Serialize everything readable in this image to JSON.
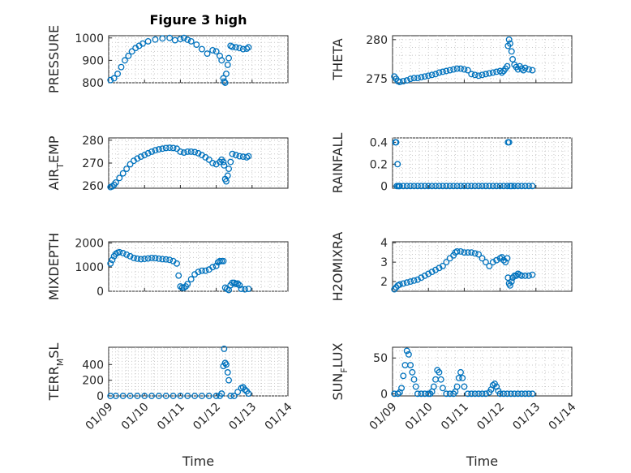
{
  "figure": {
    "title": "Figure 3 high",
    "series_color": "#0072BD",
    "xlabel": "Time"
  },
  "x_ticks": [
    "01/09",
    "01/10",
    "01/11",
    "01/12",
    "01/13",
    "01/14"
  ],
  "chart_data": [
    {
      "type": "scatter",
      "ylabel": "PRESSURE",
      "title": "Figure 3 high",
      "ylim": [
        800,
        1010
      ],
      "yticks": [
        800,
        900,
        1000
      ],
      "ytick_labels": [
        "800",
        "900",
        "1000"
      ],
      "xlim": [
        "2000-01-09",
        "2000-01-14"
      ],
      "grid": true,
      "x": [
        9.05,
        9.15,
        9.25,
        9.35,
        9.45,
        9.55,
        9.65,
        9.75,
        9.85,
        9.95,
        10.1,
        10.3,
        10.5,
        10.7,
        10.85,
        11.0,
        11.1,
        11.2,
        11.3,
        11.45,
        11.6,
        11.75,
        11.9,
        12.0,
        12.1,
        12.15,
        12.2,
        12.22,
        12.25,
        12.28,
        12.32,
        12.35,
        12.4,
        12.45,
        12.55,
        12.65,
        12.75,
        12.85,
        12.9
      ],
      "y": [
        812,
        820,
        840,
        870,
        900,
        920,
        940,
        955,
        965,
        975,
        985,
        993,
        998,
        1000,
        990,
        995,
        1000,
        992,
        985,
        970,
        950,
        930,
        945,
        940,
        920,
        900,
        820,
        805,
        800,
        840,
        880,
        910,
        965,
        960,
        958,
        955,
        950,
        952,
        958
      ]
    },
    {
      "type": "scatter",
      "ylabel": "THETA",
      "ylim": [
        274.5,
        280.5
      ],
      "yticks": [
        275,
        280
      ],
      "ytick_labels": [
        "275",
        "280"
      ],
      "xlim": [
        "2000-01-09",
        "2000-01-14"
      ],
      "grid": true,
      "x": [
        9.05,
        9.1,
        9.15,
        9.2,
        9.3,
        9.4,
        9.5,
        9.6,
        9.7,
        9.8,
        9.9,
        10.0,
        10.1,
        10.2,
        10.3,
        10.4,
        10.5,
        10.6,
        10.7,
        10.8,
        10.9,
        11.0,
        11.1,
        11.2,
        11.3,
        11.4,
        11.5,
        11.6,
        11.7,
        11.8,
        11.9,
        12.0,
        12.05,
        12.1,
        12.15,
        12.2,
        12.22,
        12.25,
        12.28,
        12.32,
        12.35,
        12.4,
        12.45,
        12.5,
        12.55,
        12.6,
        12.65,
        12.7,
        12.8,
        12.9
      ],
      "y": [
        275.3,
        275.0,
        274.7,
        274.6,
        274.7,
        274.8,
        275.0,
        275.1,
        275.1,
        275.2,
        275.3,
        275.4,
        275.5,
        275.6,
        275.8,
        275.9,
        276.0,
        276.1,
        276.2,
        276.3,
        276.3,
        276.2,
        276.1,
        275.6,
        275.5,
        275.4,
        275.5,
        275.6,
        275.7,
        275.8,
        275.9,
        276.0,
        275.8,
        276.0,
        276.3,
        276.6,
        279.2,
        280.0,
        279.5,
        278.5,
        277.5,
        276.8,
        276.5,
        276.2,
        276.6,
        276.3,
        276.1,
        276.4,
        276.2,
        276.1
      ]
    },
    {
      "type": "scatter",
      "ylabel": "AIR_TEMP",
      "ylabel_parts": [
        "AIR",
        "T",
        "EMP"
      ],
      "ylim": [
        259,
        281
      ],
      "yticks": [
        260,
        270,
        280
      ],
      "ytick_labels": [
        "260",
        "270",
        "280"
      ],
      "xlim": [
        "2000-01-09",
        "2000-01-14"
      ],
      "grid": true,
      "x": [
        9.05,
        9.1,
        9.15,
        9.2,
        9.3,
        9.4,
        9.5,
        9.6,
        9.7,
        9.8,
        9.9,
        10.0,
        10.1,
        10.2,
        10.3,
        10.4,
        10.5,
        10.6,
        10.7,
        10.8,
        10.9,
        11.0,
        11.1,
        11.2,
        11.3,
        11.4,
        11.5,
        11.6,
        11.7,
        11.8,
        11.9,
        12.0,
        12.1,
        12.15,
        12.2,
        12.22,
        12.25,
        12.28,
        12.32,
        12.35,
        12.4,
        12.45,
        12.55,
        12.65,
        12.75,
        12.85,
        12.9
      ],
      "y": [
        259.5,
        259.8,
        260.5,
        261.5,
        263.5,
        265.5,
        267.5,
        269.5,
        271.0,
        272.0,
        272.8,
        273.5,
        274.3,
        275.0,
        275.6,
        276.0,
        276.3,
        276.6,
        276.7,
        276.6,
        276.3,
        275.0,
        274.6,
        275.0,
        275.0,
        274.8,
        274.3,
        273.5,
        272.5,
        271.5,
        270.0,
        269.5,
        270.5,
        271.5,
        270.5,
        269.0,
        263.0,
        262.0,
        264.5,
        267.5,
        270.5,
        274.0,
        273.5,
        273.0,
        272.8,
        272.5,
        273.0
      ]
    },
    {
      "type": "scatter",
      "ylabel": "RAINFALL",
      "ylim": [
        -0.02,
        0.44
      ],
      "yticks": [
        0,
        0.2,
        0.4
      ],
      "ytick_labels": [
        "0",
        "0.2",
        "0.4"
      ],
      "xlim": [
        "2000-01-09",
        "2000-01-14"
      ],
      "grid": true,
      "x": [
        9.08,
        9.1,
        9.12,
        9.14,
        9.16,
        9.18,
        9.2,
        9.3,
        9.4,
        9.5,
        9.6,
        9.7,
        9.8,
        9.9,
        10.0,
        10.1,
        10.2,
        10.3,
        10.4,
        10.5,
        10.6,
        10.7,
        10.8,
        10.9,
        11.0,
        11.1,
        11.2,
        11.3,
        11.4,
        11.5,
        11.6,
        11.7,
        11.8,
        11.9,
        12.0,
        12.1,
        12.2,
        12.22,
        12.25,
        12.28,
        12.32,
        12.4,
        12.5,
        12.6,
        12.7,
        12.8,
        12.9
      ],
      "y": [
        0.4,
        0.4,
        0,
        0.2,
        0,
        0,
        0,
        0,
        0,
        0,
        0,
        0,
        0,
        0,
        0,
        0,
        0,
        0,
        0,
        0,
        0,
        0,
        0,
        0,
        0,
        0,
        0,
        0,
        0,
        0,
        0,
        0,
        0,
        0,
        0,
        0,
        0,
        0.4,
        0.4,
        0,
        0,
        0,
        0,
        0,
        0,
        0,
        0
      ]
    },
    {
      "type": "scatter",
      "ylabel": "MIXDEPTH",
      "ylim": [
        0,
        2050
      ],
      "yticks": [
        0,
        1000,
        2000
      ],
      "ytick_labels": [
        "0",
        "1000",
        "2000"
      ],
      "xlim": [
        "2000-01-09",
        "2000-01-14"
      ],
      "grid": true,
      "x": [
        9.05,
        9.1,
        9.15,
        9.2,
        9.25,
        9.3,
        9.4,
        9.5,
        9.6,
        9.7,
        9.8,
        9.9,
        10.0,
        10.1,
        10.2,
        10.3,
        10.4,
        10.5,
        10.6,
        10.7,
        10.8,
        10.9,
        10.95,
        11.0,
        11.05,
        11.1,
        11.15,
        11.2,
        11.3,
        11.4,
        11.5,
        11.6,
        11.7,
        11.8,
        11.9,
        12.0,
        12.05,
        12.1,
        12.15,
        12.2,
        12.25,
        12.3,
        12.35,
        12.4,
        12.45,
        12.5,
        12.55,
        12.6,
        12.65,
        12.7,
        12.8,
        12.9
      ],
      "y": [
        1150,
        1300,
        1450,
        1550,
        1600,
        1620,
        1580,
        1520,
        1450,
        1380,
        1350,
        1330,
        1340,
        1360,
        1380,
        1370,
        1350,
        1330,
        1320,
        1300,
        1250,
        1150,
        650,
        200,
        150,
        150,
        200,
        300,
        500,
        700,
        800,
        850,
        850,
        900,
        1000,
        1050,
        1200,
        1250,
        1250,
        1250,
        150,
        100,
        50,
        250,
        350,
        350,
        300,
        320,
        250,
        100,
        80,
        100
      ]
    },
    {
      "type": "scatter",
      "ylabel": "H2OMIXRA",
      "ylim": [
        1.5,
        4.05
      ],
      "yticks": [
        2,
        3,
        4
      ],
      "ytick_labels": [
        "2",
        "3",
        "4"
      ],
      "xlim": [
        "2000-01-09",
        "2000-01-14"
      ],
      "grid": true,
      "x": [
        9.05,
        9.1,
        9.15,
        9.2,
        9.3,
        9.4,
        9.5,
        9.6,
        9.7,
        9.8,
        9.9,
        10.0,
        10.1,
        10.2,
        10.3,
        10.4,
        10.5,
        10.6,
        10.7,
        10.75,
        10.8,
        10.9,
        11.0,
        11.1,
        11.2,
        11.3,
        11.4,
        11.5,
        11.6,
        11.7,
        11.8,
        11.9,
        12.0,
        12.05,
        12.1,
        12.15,
        12.2,
        12.22,
        12.25,
        12.28,
        12.32,
        12.35,
        12.4,
        12.45,
        12.5,
        12.55,
        12.6,
        12.7,
        12.8,
        12.9
      ],
      "y": [
        1.6,
        1.7,
        1.8,
        1.85,
        1.9,
        1.95,
        2.0,
        2.05,
        2.1,
        2.2,
        2.3,
        2.4,
        2.5,
        2.6,
        2.7,
        2.8,
        3.0,
        3.2,
        3.35,
        3.5,
        3.55,
        3.55,
        3.5,
        3.5,
        3.5,
        3.45,
        3.4,
        3.2,
        3.0,
        2.8,
        3.0,
        3.1,
        3.2,
        3.25,
        3.1,
        3.0,
        3.2,
        2.2,
        1.9,
        1.8,
        2.0,
        2.2,
        2.3,
        2.3,
        2.4,
        2.35,
        2.3,
        2.3,
        2.3,
        2.35
      ]
    },
    {
      "type": "scatter",
      "ylabel": "TERR_MSL",
      "ylabel_parts": [
        "TERR",
        "M",
        "SL"
      ],
      "ylim": [
        0,
        620
      ],
      "yticks": [
        0,
        200,
        400
      ],
      "ytick_labels": [
        "0",
        "200",
        "400"
      ],
      "xlim": [
        "2000-01-09",
        "2000-01-14"
      ],
      "grid": true,
      "x": [
        9.05,
        9.2,
        9.4,
        9.6,
        9.8,
        10.0,
        10.2,
        10.4,
        10.6,
        10.8,
        11.0,
        11.2,
        11.4,
        11.6,
        11.8,
        12.0,
        12.1,
        12.15,
        12.2,
        12.22,
        12.25,
        12.28,
        12.32,
        12.35,
        12.4,
        12.5,
        12.6,
        12.7,
        12.75,
        12.8,
        12.85,
        12.9
      ],
      "y": [
        0,
        0,
        0,
        0,
        0,
        0,
        0,
        0,
        0,
        0,
        0,
        0,
        0,
        0,
        0,
        0,
        0,
        30,
        380,
        600,
        420,
        400,
        300,
        200,
        0,
        0,
        50,
        100,
        110,
        80,
        60,
        30
      ]
    },
    {
      "type": "scatter",
      "ylabel": "SUN_FLUX",
      "ylabel_parts": [
        "SUN",
        "F",
        "LUX"
      ],
      "ylim": [
        -3,
        65
      ],
      "yticks": [
        0,
        50
      ],
      "ytick_labels": [
        "0",
        "50"
      ],
      "xlim": [
        "2000-01-09",
        "2000-01-14"
      ],
      "grid": true,
      "x": [
        9.05,
        9.15,
        9.2,
        9.25,
        9.3,
        9.35,
        9.4,
        9.45,
        9.5,
        9.55,
        9.6,
        9.65,
        9.7,
        9.8,
        9.9,
        10.0,
        10.05,
        10.1,
        10.15,
        10.2,
        10.25,
        10.3,
        10.35,
        10.4,
        10.5,
        10.6,
        10.7,
        10.75,
        10.8,
        10.85,
        10.9,
        10.95,
        11.0,
        11.1,
        11.2,
        11.3,
        11.4,
        11.5,
        11.6,
        11.7,
        11.75,
        11.8,
        11.85,
        11.9,
        11.95,
        12.0,
        12.1,
        12.2,
        12.3,
        12.4,
        12.5,
        12.6,
        12.7,
        12.8,
        12.9
      ],
      "y": [
        0,
        0,
        2,
        8,
        25,
        40,
        60,
        55,
        40,
        30,
        20,
        10,
        0,
        0,
        0,
        0,
        0,
        3,
        10,
        20,
        33,
        30,
        20,
        8,
        0,
        0,
        0,
        3,
        10,
        22,
        30,
        22,
        10,
        0,
        0,
        0,
        0,
        0,
        0,
        2,
        6,
        12,
        14,
        10,
        4,
        0,
        0,
        0,
        0,
        0,
        0,
        0,
        0,
        0,
        0
      ]
    }
  ]
}
